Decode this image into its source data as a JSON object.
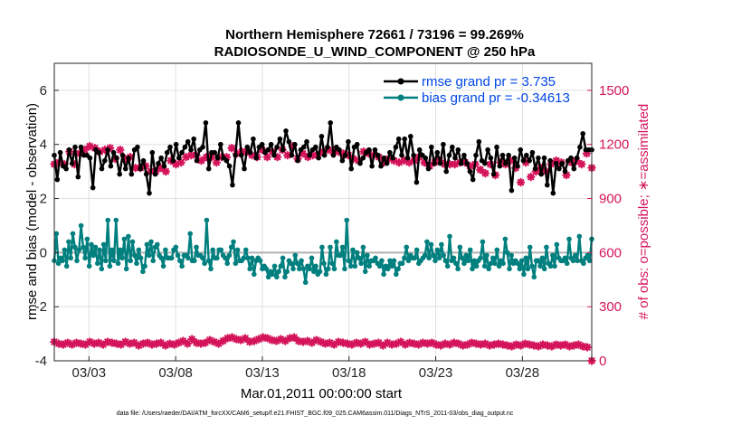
{
  "chart_data": {
    "type": "line",
    "title_line1": "Northern Hemisphere 72661 / 73196 = 99.269%",
    "title_line2": "RADIOSONDE_U_WIND_COMPONENT @ 250 hPa",
    "ylabel_left": "rmse and bias (model - observation)",
    "ylabel_right": "# of obs: o=possible; ∗=assimilated",
    "xlabel": "Mar.01,2011 00:00:00 start",
    "footnote": "data file: /Users/raeder/DAI/ATM_forcXX/CAM6_setup/f.e21.FHIST_BGC.f09_025.CAM6assim.011/Diags_NTrS_2011-03/obs_diag_output.nc",
    "x_range": [
      1.0,
      32.0
    ],
    "ylim_left": [
      -4,
      7
    ],
    "ylim_right": [
      0,
      1650
    ],
    "yticks_left": [
      -4,
      -2,
      0,
      2,
      4,
      6
    ],
    "yticks_right": [
      0,
      300,
      600,
      900,
      1200,
      1500
    ],
    "xticks": [
      {
        "x": 3,
        "label": "03/03"
      },
      {
        "x": 8,
        "label": "03/08"
      },
      {
        "x": 13,
        "label": "03/13"
      },
      {
        "x": 18,
        "label": "03/18"
      },
      {
        "x": 23,
        "label": "03/23"
      },
      {
        "x": 28,
        "label": "03/28"
      }
    ],
    "colors": {
      "rmse": "#000000",
      "bias": "#007f7f",
      "obs": "#d4145a",
      "legend_text": "#0047e6",
      "zero_line": "#b0b0b0",
      "grid": "#e0e0e0"
    },
    "series": [
      {
        "name": "rmse",
        "legend": "rmse grand pr = 3.735",
        "axis": "left",
        "values": [
          3.6,
          2.7,
          3.7,
          3.2,
          3.1,
          3.8,
          3.3,
          3.9,
          2.8,
          3.9,
          3.6,
          3.6,
          3.5,
          2.4,
          3.8,
          3.7,
          3.1,
          3.4,
          3.8,
          3.2,
          3.7,
          3.5,
          2.9,
          3.6,
          3.1,
          3.5,
          2.9,
          3.8,
          3.9,
          3.1,
          3.4,
          2.9,
          2.2,
          3.7,
          2.9,
          3.3,
          3.5,
          3.2,
          3.7,
          3.9,
          3.4,
          4.0,
          3.5,
          3.7,
          3.9,
          4.1,
          3.8,
          4.2,
          3.4,
          3.8,
          3.9,
          4.8,
          3.1,
          3.7,
          3.7,
          3.5,
          4.0,
          3.5,
          3.4,
          3.2,
          2.5,
          3.6,
          4.8,
          3.6,
          3.1,
          3.9,
          3.7,
          4.2,
          3.5,
          3.9,
          4.0,
          3.7,
          3.8,
          4.0,
          3.6,
          3.9,
          4.2,
          3.8,
          4.5,
          4.1,
          3.6,
          4.0,
          3.4,
          3.8,
          3.9,
          4.1,
          3.6,
          3.8,
          3.9,
          3.5,
          4.3,
          3.6,
          3.9,
          4.8,
          3.6,
          3.9,
          3.8,
          3.4,
          3.6,
          4.1,
          3.1,
          3.9,
          4.0,
          3.3,
          3.5,
          3.7,
          3.8,
          3.2,
          3.8,
          3.6,
          3.2,
          3.5,
          3.3,
          3.7,
          3.5,
          3.9,
          4.2,
          3.6,
          4.2,
          3.5,
          4.3,
          3.6,
          2.6,
          3.8,
          3.6,
          3.5,
          3.1,
          3.9,
          3.3,
          3.7,
          3.3,
          4.0,
          3.0,
          3.6,
          3.9,
          3.5,
          3.8,
          3.3,
          3.6,
          3.3,
          3.0,
          2.7,
          3.6,
          4.1,
          3.4,
          3.3,
          3.8,
          3.5,
          2.9,
          3.9,
          3.2,
          3.6,
          3.3,
          3.6,
          2.3,
          3.5,
          3.2,
          3.8,
          3.4,
          3.6,
          3.4,
          3.7,
          3.1,
          3.5,
          2.9,
          3.5,
          2.5,
          3.4,
          2.2,
          3.3,
          3.1,
          3.3,
          3.0,
          3.4,
          3.5,
          3.1,
          3.5,
          3.9,
          4.4,
          3.8,
          3.8,
          3.8
        ]
      },
      {
        "name": "bias",
        "legend": "bias grand pr = -0.34613",
        "axis": "left",
        "values": [
          -0.3,
          0.7,
          -0.4,
          -0.2,
          -0.3,
          0.1,
          -0.5,
          0.4,
          -0.2,
          0.7,
          0.2,
          -0.3,
          0.1,
          1.0,
          0.2,
          -0.2,
          0.5,
          -0.5,
          0.3,
          -0.1,
          0.2,
          -0.4,
          0.1,
          -0.6,
          0.3,
          -0.3,
          1.2,
          -0.5,
          0.1,
          -0.3,
          1.2,
          -0.4,
          0.1,
          -0.2,
          0.5,
          -0.6,
          0.6,
          -0.3,
          0.4,
          -0.1,
          -0.4,
          0.1,
          -0.2,
          -0.7,
          -0.5,
          0.3,
          -0.1,
          0.4,
          -0.3,
          0.2,
          0.3,
          -0.1,
          -0.2,
          -0.5,
          0.1,
          -0.2,
          -0.2,
          -0.2,
          0.1,
          0.2,
          -0.1,
          -0.3,
          -0.5,
          -0.1,
          -0.1,
          -0.2,
          0.7,
          -0.3,
          -0.3,
          0.2,
          -0.1,
          -0.1,
          -0.2,
          -0.4,
          1.2,
          -0.3,
          -0.6,
          0.1,
          -0.2,
          -0.2,
          0.1,
          0.1,
          -0.1,
          -0.2,
          -0.4,
          -0.1,
          0.2,
          0.4,
          -0.4,
          0.1,
          -0.3,
          -0.3,
          -0.2,
          0.1,
          -0.2,
          -0.6,
          -0.2,
          -0.8,
          -0.3,
          -0.2,
          -0.3,
          -0.6,
          -0.5,
          -0.6,
          -0.9,
          -0.7,
          -0.8,
          -0.5,
          -0.9,
          -0.7,
          -0.5,
          -0.2,
          -0.9,
          -0.7,
          -0.3,
          -0.4,
          -0.6,
          -0.1,
          -0.4,
          -0.6,
          -0.3,
          -0.6,
          -1.1,
          -0.5,
          -0.6,
          -0.2,
          -0.7,
          -0.5,
          -0.8,
          -0.7,
          0.2,
          -0.4,
          -0.8,
          -0.6,
          0.2,
          -0.4,
          -0.6,
          0.4,
          -0.1,
          -0.1,
          0.2,
          -0.6,
          1.2,
          -0.3,
          -0.5,
          0.1,
          -0.5,
          0.0,
          -0.2,
          -0.4,
          0.2,
          -0.7,
          -0.1,
          -0.5,
          -0.3,
          -0.3,
          -0.2,
          -0.4,
          -0.5,
          -0.3,
          -0.8,
          -0.5,
          -0.6,
          -0.3,
          -0.5,
          -0.3,
          -0.8,
          -0.6,
          -0.4,
          -0.4,
          -0.2,
          0.2,
          -0.3,
          -0.1,
          -0.2,
          -0.2,
          0.1,
          -0.4,
          -0.3,
          -0.2,
          -0.1,
          0.4,
          -0.2,
          0.3,
          -0.1,
          -0.3,
          0.1,
          -0.2,
          0.3,
          -0.1,
          -0.3,
          -0.5,
          0.6,
          -0.3,
          -0.2,
          -0.4,
          -0.6,
          0.2,
          -0.2,
          -0.4,
          -0.1,
          -0.3,
          0.1,
          -0.6,
          -0.3,
          -0.5,
          -0.3,
          -0.2,
          0.4,
          -0.5,
          -0.1,
          -0.6,
          -0.4,
          -0.2,
          -0.4,
          0.1,
          -0.5,
          -0.3,
          -0.4,
          0.5,
          0.0,
          -0.6,
          -0.1,
          -0.4,
          -0.3,
          -0.4,
          -0.6,
          -0.3,
          -0.8,
          -0.2,
          -0.6,
          0.2,
          -0.5,
          -0.9,
          -0.3,
          -0.3,
          -0.5,
          -0.2,
          -0.6,
          0.2,
          -0.4,
          -0.5,
          -0.1,
          -0.5,
          0.3,
          -0.2,
          -0.3,
          -0.3,
          -0.2,
          -0.4,
          0.5,
          -0.2,
          -0.3,
          -0.1,
          -0.3,
          0.6,
          -0.3,
          -0.4,
          -0.2,
          -0.1,
          -0.3,
          0.5
        ]
      },
      {
        "name": "assimilated obs",
        "axis": "right",
        "upper_values": [
          1090,
          1100,
          1090,
          1160,
          1090,
          1150,
          1170,
          1190,
          1180,
          1160,
          1170,
          1180,
          1120,
          1170,
          1120,
          1130,
          1070,
          1070,
          1080,
          1050,
          1050,
          1070,
          1050,
          1110,
          1090,
          1100,
          1130,
          1140,
          1140,
          1110,
          1130,
          1130,
          1100,
          1130,
          1130,
          1180,
          1150,
          1160,
          1160,
          1140,
          1130,
          1170,
          1130,
          1160,
          1130,
          1170,
          1140,
          1190,
          1120,
          1150,
          1130,
          1140,
          1140,
          1160,
          1170,
          1160,
          1160,
          1150,
          1140,
          1120,
          1110,
          1160,
          1150,
          1140,
          1130,
          1100,
          1120,
          1110,
          1100,
          1110,
          1100,
          1110,
          1130,
          1100,
          1080,
          1100,
          1110,
          1090,
          1090,
          1090,
          1100,
          1100,
          1080,
          1090,
          1060,
          1040,
          1090,
          1030,
          1100,
          1090,
          1110,
          1070,
          990,
          1100,
          1020,
          1050,
          1070,
          1050,
          1090,
          1110,
          1100,
          1030,
          1100,
          1110,
          1090,
          1150,
          1070
        ],
        "lower_values": [
          105,
          95,
          90,
          100,
          90,
          100,
          95,
          90,
          105,
          95,
          100,
          90,
          105,
          100,
          95,
          90,
          105,
          95,
          100,
          85,
          95,
          100,
          90,
          95,
          100,
          85,
          95,
          90,
          100,
          110,
          95,
          120,
          100,
          95,
          100,
          115,
          105,
          95,
          110,
          125,
          130,
          120,
          115,
          125,
          105,
          110,
          120,
          130,
          125,
          115,
          110,
          120,
          110,
          125,
          130,
          110,
          105,
          110,
          100,
          115,
          105,
          95,
          100,
          90,
          105,
          100,
          95,
          90,
          100,
          95,
          105,
          90,
          95,
          100,
          85,
          100,
          90,
          95,
          105,
          90,
          100,
          95,
          90,
          100,
          95,
          100,
          90,
          85,
          95,
          90,
          100,
          95,
          85,
          90,
          100,
          95,
          90,
          95,
          85,
          90,
          95,
          90,
          85,
          80,
          90,
          85,
          95,
          90,
          85,
          80,
          90,
          85,
          80,
          90,
          85,
          90,
          80,
          85,
          90,
          80,
          75,
          0
        ]
      }
    ]
  }
}
